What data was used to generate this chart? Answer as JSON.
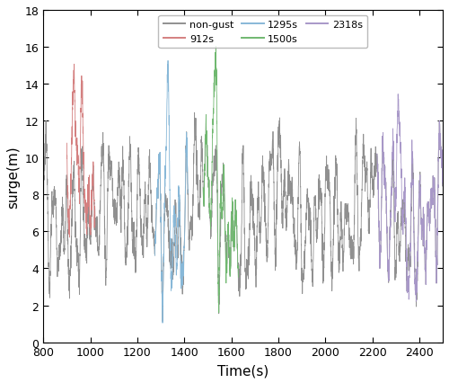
{
  "xlabel": "Time(s)",
  "ylabel": "surge(m)",
  "xlim": [
    800,
    2500
  ],
  "ylim": [
    0,
    18
  ],
  "xticks": [
    800,
    1000,
    1200,
    1400,
    1600,
    1800,
    2000,
    2200,
    2400
  ],
  "yticks": [
    0,
    2,
    4,
    6,
    8,
    10,
    12,
    14,
    16,
    18
  ],
  "legend_entries": [
    "non-gust",
    "912s",
    "1295s",
    "1500s",
    "2318s"
  ],
  "legend_colors": [
    "#909090",
    "#d48080",
    "#88b8d8",
    "#70b870",
    "#a898c8"
  ],
  "gust_segments": {
    "912s": {
      "xstart": 900,
      "xend": 1020,
      "color": "#d48080"
    },
    "1295s": {
      "xstart": 1275,
      "xend": 1415,
      "color": "#88b8d8"
    },
    "1500s": {
      "xstart": 1480,
      "xend": 1630,
      "color": "#70b870"
    },
    "2318s": {
      "xstart": 2220,
      "xend": 2500,
      "color": "#a898c8"
    }
  },
  "base_color": "#909090",
  "linewidth": 0.6,
  "seed": 12345,
  "dt": 0.5
}
